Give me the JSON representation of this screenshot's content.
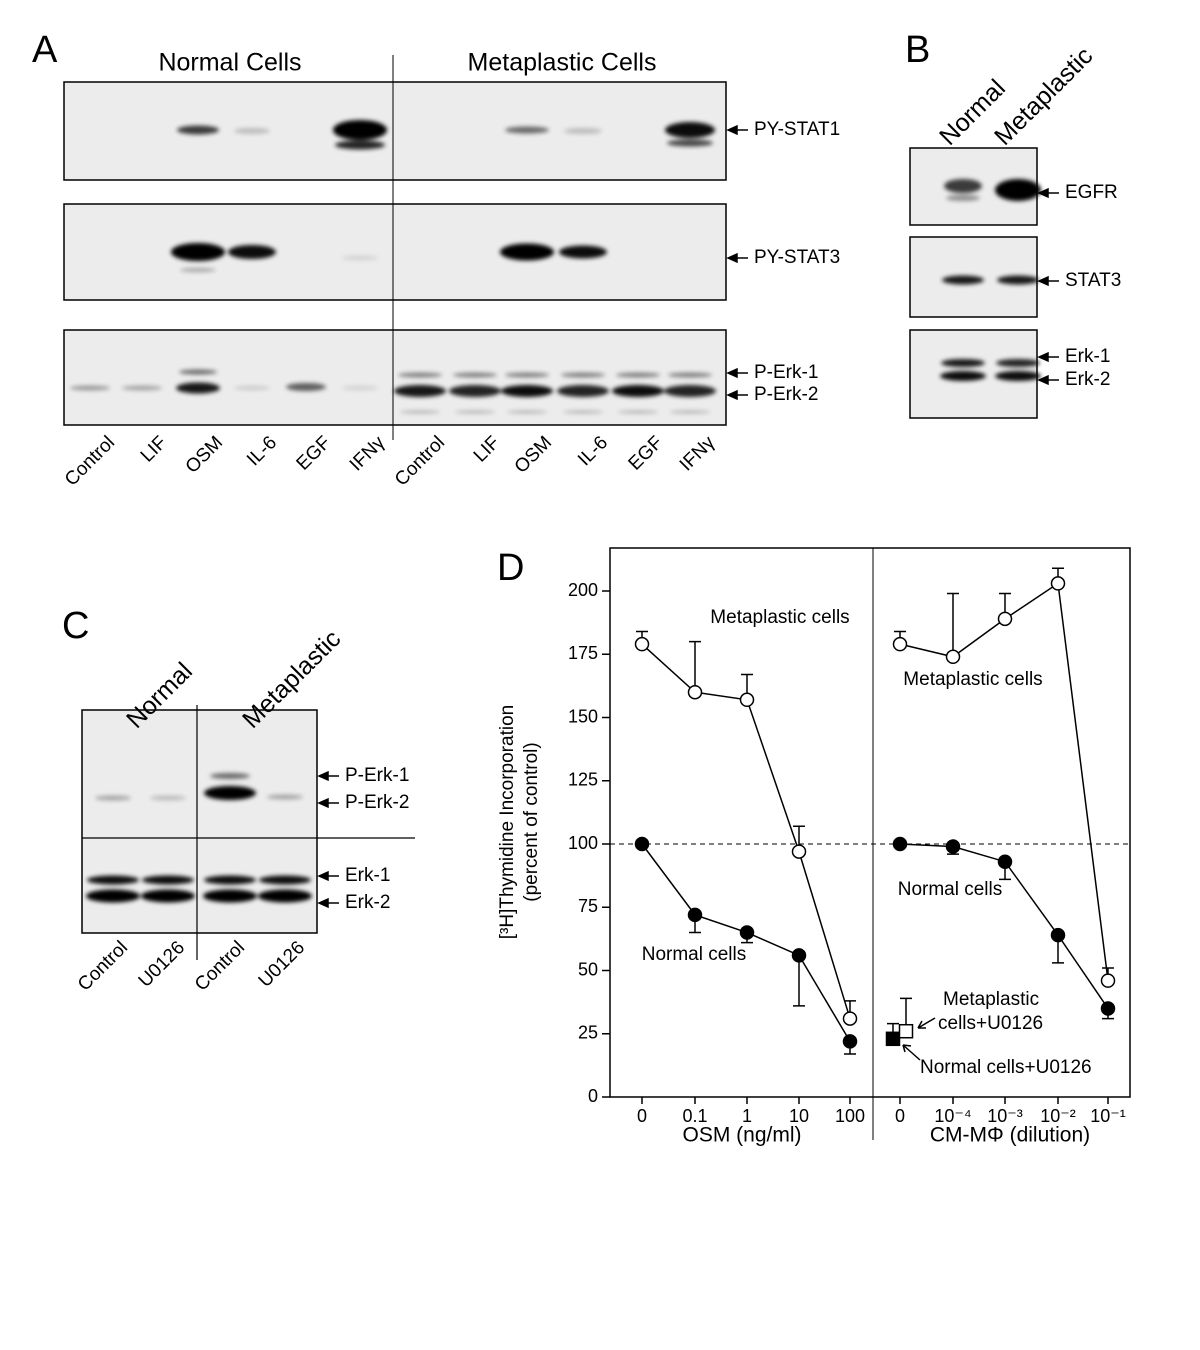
{
  "panel_a": {
    "letter": "A",
    "groups": [
      "Normal Cells",
      "Metaplastic Cells"
    ],
    "lanes": [
      "Control",
      "LIF",
      "OSM",
      "IL-6",
      "EGF",
      "IFNγ",
      "Control",
      "LIF",
      "OSM",
      "IL-6",
      "EGF",
      "IFNγ"
    ],
    "band_labels": [
      "PY-STAT1",
      "PY-STAT3",
      "P-Erk-1",
      "P-Erk-2"
    ]
  },
  "panel_b": {
    "letter": "B",
    "columns": [
      "Normal",
      "Metaplastic"
    ],
    "band_labels": [
      "EGFR",
      "STAT3",
      "Erk-1",
      "Erk-2"
    ]
  },
  "panel_c": {
    "letter": "C",
    "groups": [
      "Normal",
      "Metaplastic"
    ],
    "lanes": [
      "Control",
      "U0126",
      "Control",
      "U0126"
    ],
    "band_labels": [
      "P-Erk-1",
      "P-Erk-2",
      "Erk-1",
      "Erk-2"
    ]
  },
  "chart_data": {
    "type": "line",
    "letter": "D",
    "ylabel": [
      "[³H]Thymidine Incorporation",
      "(percent of control)"
    ],
    "ylim": [
      0,
      217
    ],
    "yticks": [
      0,
      25,
      50,
      75,
      100,
      125,
      150,
      175,
      200
    ],
    "reference_line": 100,
    "panels": [
      {
        "xlabel": "OSM (ng/ml)",
        "categories": [
          "0",
          "0.1",
          "1",
          "10",
          "100"
        ],
        "series": [
          {
            "name": "Metaplastic cells",
            "marker": "open-circle",
            "error_direction": "up",
            "values": [
              179,
              160,
              157,
              97,
              31
            ],
            "errors": [
              5,
              20,
              10,
              10,
              7
            ]
          },
          {
            "name": "Normal cells",
            "marker": "filled-circle",
            "error_direction": "down",
            "values": [
              100,
              72,
              65,
              56,
              22
            ],
            "errors": [
              null,
              7,
              4,
              20,
              5
            ]
          }
        ]
      },
      {
        "xlabel": "CM-MΦ (dilution)",
        "categories": [
          "0",
          "10⁻⁴",
          "10⁻³",
          "10⁻²",
          "10⁻¹"
        ],
        "series": [
          {
            "name": "Metaplastic cells",
            "marker": "open-circle",
            "error_direction": "up",
            "values": [
              179,
              174,
              189,
              203,
              46
            ],
            "errors": [
              5,
              25,
              10,
              6,
              5
            ]
          },
          {
            "name": "Normal cells",
            "marker": "filled-circle",
            "error_direction": "down",
            "values": [
              100,
              99,
              93,
              64,
              35
            ],
            "errors": [
              null,
              3,
              7,
              11,
              4
            ]
          }
        ]
      }
    ],
    "inhibitor_points": [
      {
        "name": "Normal cells+U0126",
        "marker": "filled-square",
        "values": [
          23
        ],
        "errors": [
          6
        ]
      },
      {
        "name": "Metaplastic cells+U0126",
        "marker": "open-square",
        "values": [
          26
        ],
        "errors": [
          13
        ]
      }
    ]
  }
}
